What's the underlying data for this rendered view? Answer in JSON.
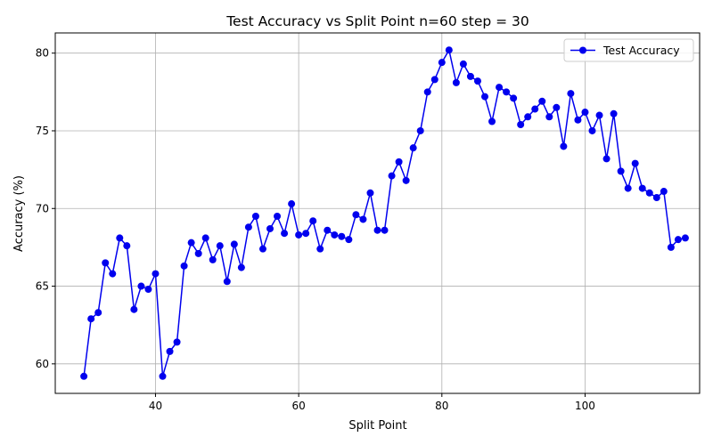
{
  "chart_data": {
    "type": "line",
    "title": "Test Accuracy vs Split Point n=60 step = 30",
    "xlabel": "Split Point",
    "ylabel": "Accuracy (%)",
    "xlim": [
      26,
      116
    ],
    "ylim": [
      58.1,
      81.3
    ],
    "xticks": [
      40,
      60,
      80,
      100
    ],
    "yticks": [
      60,
      65,
      70,
      75,
      80
    ],
    "grid": true,
    "legend_position": "top-right",
    "series": [
      {
        "name": "Test Accuracy",
        "color": "#0000ee",
        "marker": "circle",
        "x": [
          30,
          31,
          32,
          33,
          34,
          35,
          36,
          37,
          38,
          39,
          40,
          41,
          42,
          43,
          44,
          45,
          46,
          47,
          48,
          49,
          50,
          51,
          52,
          53,
          54,
          55,
          56,
          57,
          58,
          59,
          60,
          61,
          62,
          63,
          64,
          65,
          66,
          67,
          68,
          69,
          70,
          71,
          72,
          73,
          74,
          75,
          76,
          77,
          78,
          79,
          80,
          81,
          82,
          83,
          84,
          85,
          86,
          87,
          88,
          89,
          90,
          91,
          92,
          93,
          94,
          95,
          96,
          97,
          98,
          99,
          100,
          101,
          102,
          103,
          104,
          105,
          106,
          107,
          108,
          109,
          110,
          111,
          112,
          113,
          114
        ],
        "y": [
          59.2,
          62.9,
          63.3,
          66.5,
          65.8,
          68.1,
          67.6,
          63.5,
          65.0,
          64.8,
          65.8,
          59.2,
          60.8,
          61.4,
          66.3,
          67.8,
          67.1,
          68.1,
          66.7,
          67.6,
          65.3,
          67.7,
          66.2,
          68.8,
          69.5,
          67.4,
          68.7,
          69.5,
          68.4,
          70.3,
          68.3,
          68.4,
          69.2,
          67.4,
          68.6,
          68.3,
          68.2,
          68.0,
          69.6,
          69.3,
          71.0,
          68.6,
          68.6,
          72.1,
          73.0,
          71.8,
          73.9,
          75.0,
          77.5,
          78.3,
          79.4,
          80.2,
          78.1,
          79.3,
          78.5,
          78.2,
          77.2,
          75.6,
          77.8,
          77.5,
          77.1,
          75.4,
          75.9,
          76.4,
          76.9,
          75.9,
          76.5,
          74.0,
          77.4,
          75.7,
          76.2,
          75.0,
          76.0,
          73.2,
          76.1,
          72.4,
          71.3,
          72.9,
          71.3,
          71.0,
          70.7,
          71.1,
          67.5,
          68.0,
          68.1
        ]
      }
    ]
  }
}
